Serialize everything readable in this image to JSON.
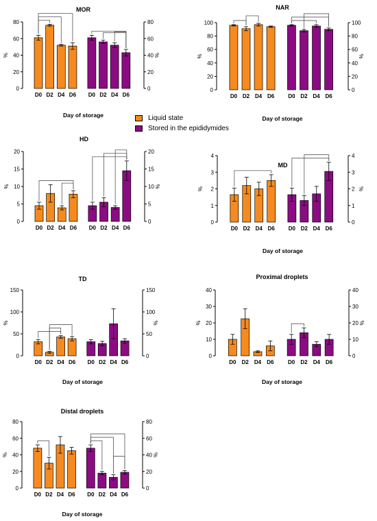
{
  "colors": {
    "liquid": "#F58A1F",
    "stored": "#8B0C82"
  },
  "legend": {
    "liquid_label": "Liquid state",
    "stored_label": "Stored in the epididymides"
  },
  "chart_data": [
    {
      "type": "bar",
      "title": "MOR",
      "xlabel": "Day of storage",
      "ylabel": "%",
      "ylim": [
        0,
        80
      ],
      "yticks": [
        0,
        20,
        40,
        60,
        80
      ],
      "grid": false,
      "groups": [
        "Liquid state",
        "Stored in the epididymides"
      ],
      "categories": [
        "D0",
        "D2",
        "D4",
        "D6"
      ],
      "series": [
        {
          "name": "Liquid state",
          "values": [
            61,
            76,
            52,
            51
          ],
          "errors": [
            3,
            1,
            1,
            4
          ]
        },
        {
          "name": "Stored in the epididymides",
          "values": [
            61,
            56,
            52,
            43
          ],
          "errors": [
            3,
            2,
            3,
            4
          ]
        }
      ],
      "significance": [
        {
          "group": 0,
          "from": 0,
          "to": 1
        },
        {
          "group": 0,
          "from": 0,
          "to": 2
        },
        {
          "group": 0,
          "from": 0,
          "to": 3
        },
        {
          "group": 1,
          "from": 0,
          "to": 3
        },
        {
          "group": 1,
          "from": 1,
          "to": 3
        },
        {
          "group": 1,
          "from": 2,
          "to": 3
        }
      ]
    },
    {
      "type": "bar",
      "title": "NAR",
      "xlabel": "Day of storage",
      "ylabel": "%",
      "ylim": [
        0,
        100
      ],
      "yticks": [
        0,
        20,
        40,
        60,
        80,
        100
      ],
      "grid": false,
      "groups": [
        "Liquid state",
        "Stored in the epididymides"
      ],
      "categories": [
        "D0",
        "D2",
        "D4",
        "D6"
      ],
      "series": [
        {
          "name": "Liquid state",
          "values": [
            96,
            91,
            97,
            94
          ],
          "errors": [
            1,
            3,
            2,
            1
          ]
        },
        {
          "name": "Stored in the epididymides",
          "values": [
            96,
            88,
            95,
            90
          ],
          "errors": [
            1,
            2,
            2,
            2
          ]
        }
      ],
      "significance": [
        {
          "group": 0,
          "from": 0,
          "to": 1
        },
        {
          "group": 0,
          "from": 1,
          "to": 2
        },
        {
          "group": 1,
          "from": 0,
          "to": 2
        },
        {
          "group": 1,
          "from": 0,
          "to": 3
        },
        {
          "group": 1,
          "from": 1,
          "to": 3
        }
      ]
    },
    {
      "type": "bar",
      "title": "HD",
      "xlabel": "",
      "ylabel": "%",
      "ylim": [
        0,
        20
      ],
      "yticks": [
        0,
        5,
        10,
        15,
        20
      ],
      "grid": false,
      "groups": [
        "Liquid state",
        "Stored in the epididymides"
      ],
      "categories": [
        "D0",
        "D2",
        "D4",
        "D6"
      ],
      "series": [
        {
          "name": "Liquid state",
          "values": [
            4.5,
            8,
            3.9,
            7.8
          ],
          "errors": [
            1,
            2.5,
            0.6,
            1
          ]
        },
        {
          "name": "Stored in the epididymides",
          "values": [
            4.5,
            5.5,
            4,
            14.5
          ],
          "errors": [
            1,
            1.3,
            0.5,
            2.8
          ]
        }
      ],
      "significance": [
        {
          "group": 0,
          "from": 0,
          "to": 3
        },
        {
          "group": 0,
          "from": 2,
          "to": 3
        },
        {
          "group": 1,
          "from": 0,
          "to": 3
        },
        {
          "group": 1,
          "from": 1,
          "to": 3
        },
        {
          "group": 1,
          "from": 2,
          "to": 3
        }
      ]
    },
    {
      "type": "bar",
      "title": "MD",
      "xlabel": "Day of storage",
      "ylabel": "%",
      "ylim": [
        0,
        4
      ],
      "yticks": [
        0,
        1,
        2,
        3,
        4
      ],
      "grid": false,
      "groups": [
        "Liquid state",
        "Stored in the epididymides"
      ],
      "categories": [
        "D0",
        "D2",
        "D4",
        "D6"
      ],
      "series": [
        {
          "name": "Liquid state",
          "values": [
            1.65,
            2.2,
            2,
            2.5
          ],
          "errors": [
            0.4,
            0.5,
            0.4,
            0.35
          ]
        },
        {
          "name": "Stored in the epididymides",
          "values": [
            1.65,
            1.3,
            1.7,
            3.05
          ],
          "errors": [
            0.4,
            0.3,
            0.45,
            0.55
          ]
        }
      ],
      "significance": [
        {
          "group": 0,
          "from": 0,
          "to": 3
        },
        {
          "group": 1,
          "from": 0,
          "to": 3
        },
        {
          "group": 1,
          "from": 1,
          "to": 3
        }
      ]
    },
    {
      "type": "bar",
      "title": "TD",
      "xlabel": "Day of storage",
      "ylabel": "%",
      "ylim": [
        0,
        150
      ],
      "yticks": [
        0,
        50,
        100,
        150
      ],
      "grid": false,
      "groups": [
        "Liquid state",
        "Stored in the epididymides"
      ],
      "categories": [
        "D0",
        "D2",
        "D4",
        "D6"
      ],
      "series": [
        {
          "name": "Liquid state",
          "values": [
            32,
            8,
            43,
            39
          ],
          "errors": [
            5,
            2,
            3,
            5
          ]
        },
        {
          "name": "Stored in the epididymides",
          "values": [
            32,
            28,
            73,
            34
          ],
          "errors": [
            5,
            5,
            34,
            5
          ]
        }
      ],
      "significance": [
        {
          "group": 0,
          "from": 0,
          "to": 2
        },
        {
          "group": 0,
          "from": 1,
          "to": 2
        },
        {
          "group": 0,
          "from": 1,
          "to": 3
        }
      ]
    },
    {
      "type": "bar",
      "title": "Proximal droplets",
      "xlabel": "Day of storage",
      "ylabel": "%",
      "ylim": [
        0,
        40
      ],
      "yticks": [
        0,
        10,
        20,
        30,
        40
      ],
      "grid": false,
      "groups": [
        "Liquid state",
        "Stored in the epididymides"
      ],
      "categories": [
        "D0",
        "D2",
        "D4",
        "D6"
      ],
      "series": [
        {
          "name": "Liquid state",
          "values": [
            10,
            22.5,
            2.5,
            6
          ],
          "errors": [
            3,
            6,
            0.5,
            3
          ]
        },
        {
          "name": "Stored in the epididymides",
          "values": [
            10,
            14,
            7,
            10
          ],
          "errors": [
            3,
            3,
            1.5,
            3
          ]
        }
      ],
      "significance": [
        {
          "group": 1,
          "from": 0,
          "to": 1
        }
      ]
    },
    {
      "type": "bar",
      "title": "Distal droplets",
      "xlabel": "Day of storage",
      "ylabel": "%",
      "ylim": [
        0,
        80
      ],
      "yticks": [
        0,
        20,
        40,
        60,
        80
      ],
      "grid": false,
      "groups": [
        "Liquid state",
        "Stored in the epididymides"
      ],
      "categories": [
        "D0",
        "D2",
        "D4",
        "D6"
      ],
      "series": [
        {
          "name": "Liquid state",
          "values": [
            48,
            30,
            52,
            45
          ],
          "errors": [
            4,
            7,
            10,
            4
          ]
        },
        {
          "name": "Stored in the epididymides",
          "values": [
            48,
            18,
            13,
            19
          ],
          "errors": [
            4,
            2,
            3,
            2
          ]
        }
      ],
      "significance": [
        {
          "group": 0,
          "from": 0,
          "to": 1
        },
        {
          "group": 1,
          "from": 0,
          "to": 1
        },
        {
          "group": 1,
          "from": 0,
          "to": 2
        },
        {
          "group": 1,
          "from": 0,
          "to": 3
        },
        {
          "group": 1,
          "from": 2,
          "to": 3
        }
      ]
    }
  ]
}
